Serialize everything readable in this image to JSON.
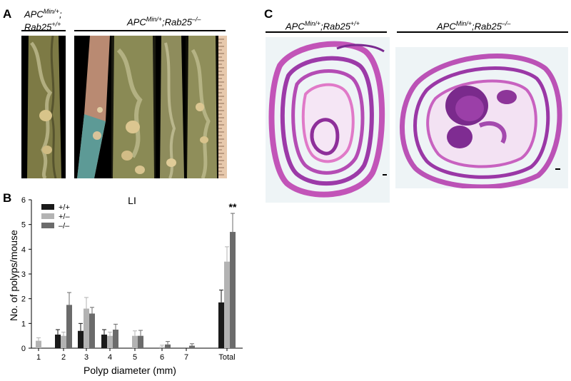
{
  "panels": {
    "a": {
      "letter": "A",
      "label_left_line1_base": "APC",
      "label_left_line1_sup": "Min/+",
      "label_left_line1_tail": ";",
      "label_left_line2_base": "Rab25",
      "label_left_line2_sup": "+/+",
      "label_right_base": "APC",
      "label_right_sup1": "Min/+",
      "label_right_mid": ";Rab25",
      "label_right_sup2": "–/–"
    },
    "b": {
      "letter": "B"
    },
    "c": {
      "letter": "C",
      "label_left_base": "APC",
      "label_left_sup1": "Min/+",
      "label_left_mid": ";Rab25",
      "label_left_sup2": "+/+",
      "label_right_base": "APC",
      "label_right_sup1": "Min/+",
      "label_right_mid": ";Rab25",
      "label_right_sup2": "–/–"
    }
  },
  "chart_data": {
    "type": "bar",
    "title": "LI",
    "xlabel": "Polyp diameter (mm)",
    "ylabel": "No. of polyps/mouse",
    "ylim": [
      0,
      6
    ],
    "yticks": [
      "0",
      "1",
      "2",
      "3",
      "4",
      "5",
      "6"
    ],
    "categories": [
      "1",
      "2",
      "3",
      "4",
      "5",
      "6",
      "7",
      "Total"
    ],
    "series": [
      {
        "name": "+/+",
        "color": "#1a1a1a",
        "values": [
          0,
          0.55,
          0.7,
          0.55,
          0,
          0,
          0,
          1.85
        ],
        "errors": [
          0,
          0.2,
          0.3,
          0.2,
          0,
          0,
          0,
          0.5
        ]
      },
      {
        "name": "+/–",
        "color": "#b3b3b3",
        "values": [
          0.3,
          0.5,
          1.6,
          0.5,
          0.5,
          0.05,
          0,
          3.5
        ],
        "errors": [
          0.12,
          0.15,
          0.45,
          0.15,
          0.2,
          0.07,
          0,
          0.6
        ]
      },
      {
        "name": "–/–",
        "color": "#6b6b6b",
        "values": [
          0,
          1.75,
          1.4,
          0.75,
          0.5,
          0.15,
          0.1,
          4.7
        ],
        "errors": [
          0,
          0.5,
          0.25,
          0.22,
          0.22,
          0.12,
          0.08,
          0.75
        ]
      }
    ],
    "legend_position": "top-left",
    "annotation": "**"
  }
}
